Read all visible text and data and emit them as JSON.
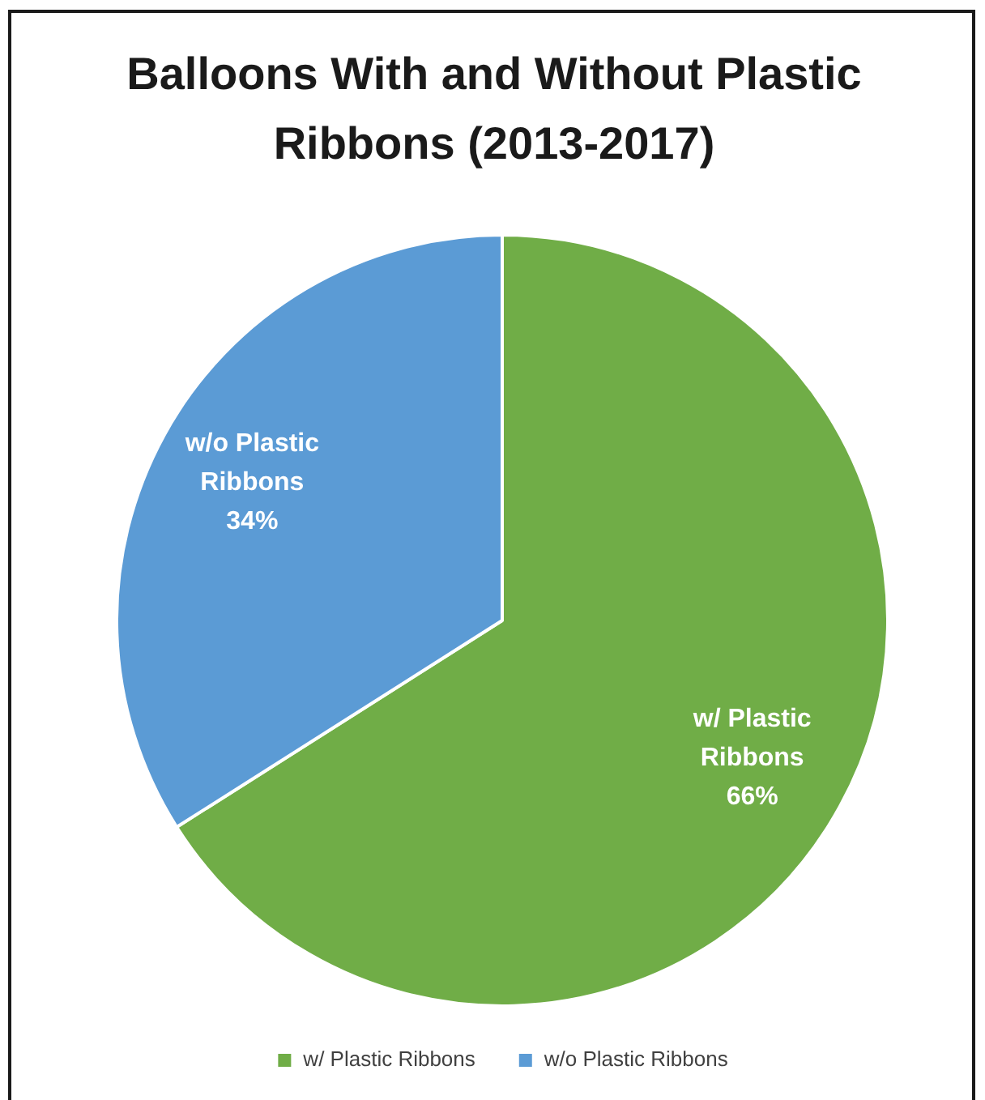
{
  "chart_data": {
    "type": "pie",
    "title": "Balloons With and Without Plastic Ribbons (2013-2017)",
    "categories": [
      "w/ Plastic Ribbons",
      "w/o Plastic Ribbons"
    ],
    "values": [
      66,
      34
    ],
    "colors": [
      "#70ad47",
      "#5b9bd5"
    ],
    "value_labels": [
      "66%",
      "34%"
    ],
    "legend": "bottom"
  }
}
